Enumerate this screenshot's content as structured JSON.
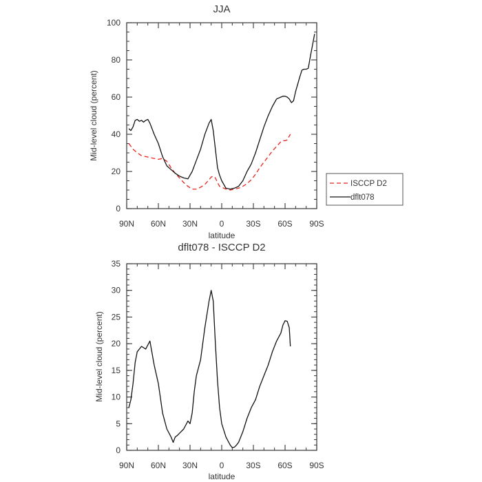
{
  "chart_data": [
    {
      "type": "line",
      "title": "JJA",
      "xlabel": "latitude",
      "ylabel": "Mid-level cloud (percent)",
      "xlim": [
        90,
        -90
      ],
      "ylim": [
        0,
        100
      ],
      "xticks": [
        90,
        60,
        30,
        0,
        -30,
        -60,
        -90
      ],
      "xtick_labels": [
        "90N",
        "60N",
        "30N",
        "0",
        "30S",
        "60S",
        "90S"
      ],
      "yticks": [
        0,
        20,
        40,
        60,
        80,
        100
      ],
      "ytick_labels": [
        "0",
        "20",
        "40",
        "60",
        "80",
        "100"
      ],
      "legend_position": "right",
      "series": [
        {
          "name": "ISCCP D2",
          "color": "#e8231c",
          "dash": "dashed",
          "x": [
            88,
            84,
            80,
            76,
            72,
            68,
            64,
            60,
            56,
            52,
            48,
            44,
            40,
            36,
            32,
            28,
            24,
            20,
            16,
            12,
            10,
            8,
            6,
            4,
            2,
            0,
            -4,
            -8,
            -12,
            -16,
            -20,
            -24,
            -28,
            -32,
            -36,
            -40,
            -44,
            -48,
            -52,
            -56,
            -58,
            -60,
            -62,
            -64,
            -65
          ],
          "y": [
            35,
            32,
            30,
            28.5,
            28,
            27.5,
            27,
            26.5,
            27,
            25.5,
            22,
            19,
            16.5,
            14,
            12,
            10.5,
            10.5,
            11.5,
            13,
            15.5,
            17,
            17.5,
            16.5,
            14,
            12,
            11.5,
            10.5,
            10,
            10.5,
            11,
            12,
            13.5,
            15.5,
            18.5,
            22,
            25,
            28,
            31,
            33.5,
            36,
            36.5,
            36.5,
            37,
            39,
            40
          ]
        },
        {
          "name": "dflt078",
          "color": "#111111",
          "dash": "solid",
          "x": [
            88,
            86,
            84,
            82,
            80,
            78,
            76,
            74,
            72,
            70,
            68,
            64,
            60,
            56,
            52,
            48,
            44,
            40,
            36,
            32,
            28,
            24,
            20,
            16,
            12,
            10,
            8,
            6,
            4,
            2,
            0,
            -4,
            -8,
            -12,
            -16,
            -20,
            -24,
            -28,
            -32,
            -36,
            -40,
            -44,
            -48,
            -52,
            -56,
            -58,
            -60,
            -62,
            -64,
            -66,
            -68,
            -70,
            -72,
            -74,
            -76,
            -78,
            -80,
            -82,
            -84,
            -86,
            -88
          ],
          "y": [
            43,
            42,
            44,
            47.5,
            48,
            47,
            47.5,
            46.5,
            47.5,
            48,
            46,
            40,
            35,
            28,
            23,
            21,
            19,
            17.5,
            16.5,
            16,
            20,
            26,
            32,
            40,
            46,
            48,
            42,
            32,
            22,
            18,
            15,
            11,
            10.5,
            11,
            12,
            15,
            20,
            24,
            30,
            37,
            44,
            50,
            55,
            59,
            60,
            60.5,
            60.5,
            60,
            59,
            57,
            58,
            63,
            67,
            71,
            74.5,
            75,
            75,
            75.5,
            82,
            88,
            94
          ]
        }
      ]
    },
    {
      "type": "line",
      "title": "dflt078 - ISCCP D2",
      "xlabel": "latitude",
      "ylabel": "Mid-level cloud (percent)",
      "xlim": [
        90,
        -90
      ],
      "ylim": [
        0,
        35
      ],
      "xticks": [
        90,
        60,
        30,
        0,
        -30,
        -60,
        -90
      ],
      "xtick_labels": [
        "90N",
        "60N",
        "30N",
        "0",
        "30S",
        "60S",
        "90S"
      ],
      "yticks": [
        0,
        5,
        10,
        15,
        20,
        25,
        30,
        35
      ],
      "ytick_labels": [
        "0",
        "5",
        "10",
        "15",
        "20",
        "25",
        "30",
        "35"
      ],
      "series": [
        {
          "color": "#111111",
          "dash": "solid",
          "x": [
            88,
            86,
            84,
            82,
            80,
            76,
            72,
            68,
            64,
            60,
            56,
            52,
            48,
            46,
            44,
            42,
            40,
            36,
            32,
            30,
            28,
            26,
            24,
            20,
            16,
            12,
            10,
            8,
            6,
            4,
            2,
            0,
            -4,
            -8,
            -10,
            -12,
            -14,
            -16,
            -20,
            -24,
            -28,
            -32,
            -36,
            -40,
            -44,
            -48,
            -52,
            -56,
            -58,
            -60,
            -62,
            -64,
            -65
          ],
          "y": [
            8,
            9.5,
            12.5,
            16.5,
            18.5,
            19.5,
            19,
            20.5,
            16,
            12.5,
            7,
            4,
            2.5,
            1.5,
            2.5,
            2.8,
            3.2,
            4,
            5.5,
            5,
            7,
            11,
            14,
            17,
            23,
            28,
            30,
            28,
            20,
            13,
            8,
            5,
            2.5,
            1,
            0.5,
            0.6,
            1,
            1.5,
            3.5,
            6,
            8,
            9.5,
            12,
            14,
            16,
            18.5,
            20.5,
            22,
            23.5,
            24.3,
            24.2,
            23,
            19.5
          ]
        }
      ]
    }
  ],
  "colors": {
    "frame": "#333333",
    "isccp": "#e8231c",
    "model": "#111111"
  }
}
